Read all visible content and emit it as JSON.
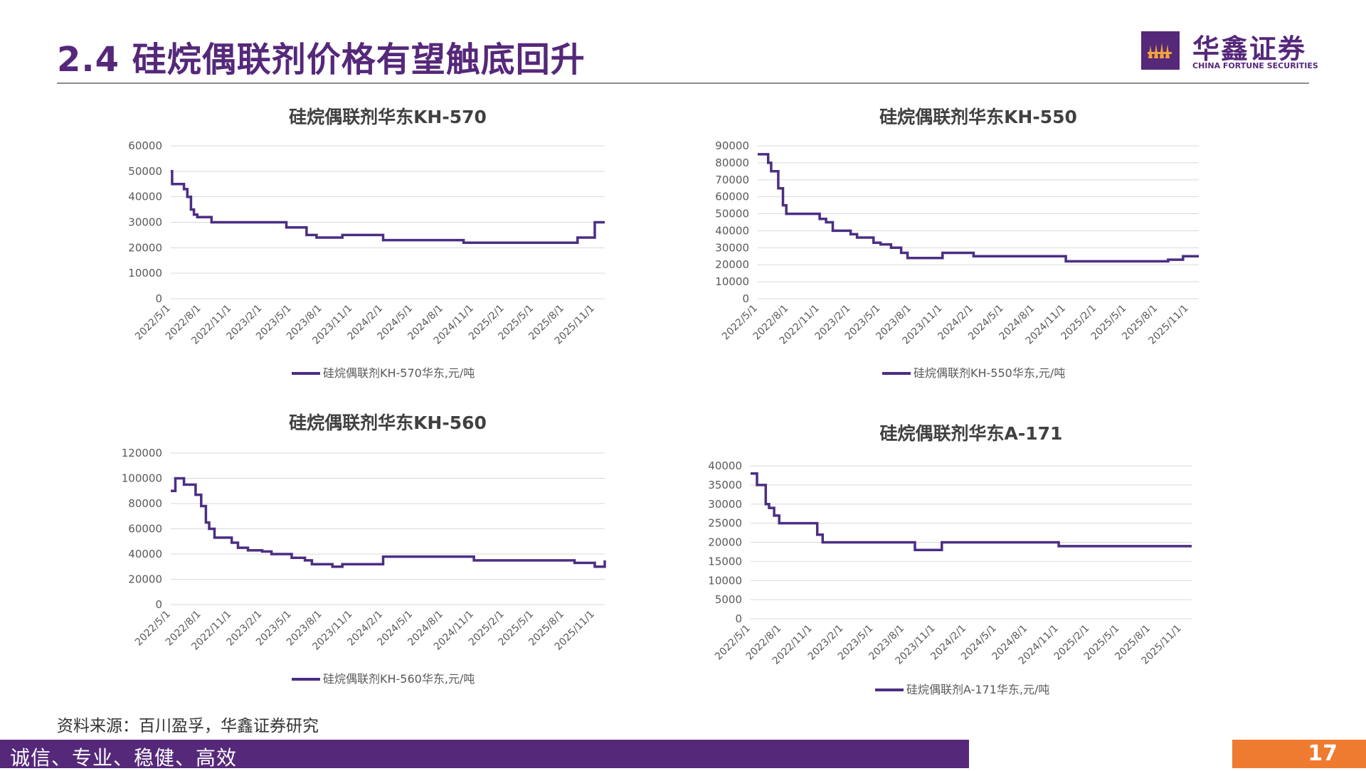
{
  "page": {
    "title": "2.4 硅烷偶联剂价格有望触底回升",
    "logo_cn": "华鑫证券",
    "logo_en": "CHINA FORTUNE SECURITIES",
    "source": "资料来源：百川盈孚，华鑫证券研究",
    "slogan": "诚信、专业、稳健、高效",
    "page_number": "17",
    "colors": {
      "brand": "#55287a",
      "line": "#4b2e83",
      "accent": "#ee7b30"
    }
  },
  "chart_data": [
    {
      "type": "line",
      "title": "硅烷偶联剂华东KH-570",
      "legend": "硅烷偶联剂KH-570华东,元/吨",
      "legend_position": "bottom",
      "grid": true,
      "ylim": [
        0,
        60000
      ],
      "yticks": [
        "0",
        "10000",
        "20000",
        "30000",
        "40000",
        "50000",
        "60000"
      ],
      "xlim": [
        "2022-05-01",
        "2025-12-01"
      ],
      "xticks": [
        "2022/5/1",
        "2022/8/1",
        "2022/11/1",
        "2023/2/1",
        "2023/5/1",
        "2023/8/1",
        "2023/11/1",
        "2024/2/1",
        "2024/5/1",
        "2024/8/1",
        "2024/11/1",
        "2025/2/1",
        "2025/5/1",
        "2025/8/1",
        "2025/11/1"
      ],
      "x": [
        "2022-05-01",
        "2022-05-05",
        "2022-06-10",
        "2022-06-20",
        "2022-07-01",
        "2022-07-10",
        "2022-07-20",
        "2022-08-20",
        "2022-09-01",
        "2022-10-10",
        "2023-01-01",
        "2023-04-15",
        "2023-06-15",
        "2023-07-15",
        "2023-10-01",
        "2024-02-01",
        "2024-10-01",
        "2025-08-01",
        "2025-09-10",
        "2025-09-20",
        "2025-11-01",
        "2025-12-01"
      ],
      "series": [
        {
          "values": [
            50000,
            45000,
            43000,
            40000,
            35000,
            33000,
            32000,
            32000,
            30000,
            30000,
            30000,
            28000,
            25000,
            24000,
            25000,
            23000,
            22000,
            22000,
            24000,
            24000,
            30000,
            30000
          ]
        }
      ]
    },
    {
      "type": "line",
      "title": "硅烷偶联剂华东KH-550",
      "legend": "硅烷偶联剂KH-550华东,元/吨",
      "legend_position": "bottom",
      "grid": true,
      "ylim": [
        0,
        90000
      ],
      "yticks": [
        "0",
        "10000",
        "20000",
        "30000",
        "40000",
        "50000",
        "60000",
        "70000",
        "80000",
        "90000"
      ],
      "xlim": [
        "2022-05-01",
        "2025-12-01"
      ],
      "xticks": [
        "2022/5/1",
        "2022/8/1",
        "2022/11/1",
        "2023/2/1",
        "2023/5/1",
        "2023/8/1",
        "2023/11/1",
        "2024/2/1",
        "2024/5/1",
        "2024/8/1",
        "2024/11/1",
        "2025/2/1",
        "2025/5/1",
        "2025/8/1",
        "2025/11/1"
      ],
      "x": [
        "2022-05-01",
        "2022-06-01",
        "2022-06-10",
        "2022-07-01",
        "2022-07-15",
        "2022-07-25",
        "2022-08-05",
        "2022-09-01",
        "2022-11-01",
        "2022-11-20",
        "2022-12-10",
        "2023-02-01",
        "2023-02-20",
        "2023-04-10",
        "2023-05-01",
        "2023-06-01",
        "2023-07-01",
        "2023-07-20",
        "2023-11-01",
        "2024-02-01",
        "2024-11-01",
        "2025-08-01",
        "2025-09-01",
        "2025-10-15",
        "2025-12-01"
      ],
      "series": [
        {
          "values": [
            85000,
            80000,
            75000,
            65000,
            55000,
            50000,
            50000,
            50000,
            47000,
            45000,
            40000,
            38000,
            36000,
            33000,
            32000,
            30000,
            27000,
            24000,
            27000,
            25000,
            22000,
            22000,
            23000,
            25000,
            25000
          ]
        }
      ]
    },
    {
      "type": "line",
      "title": "硅烷偶联剂华东KH-560",
      "legend": "硅烷偶联剂KH-560华东,元/吨",
      "legend_position": "bottom",
      "grid": true,
      "ylim": [
        0,
        120000
      ],
      "yticks": [
        "0",
        "20000",
        "40000",
        "60000",
        "80000",
        "100000",
        "120000"
      ],
      "xlim": [
        "2022-05-01",
        "2025-12-01"
      ],
      "xticks": [
        "2022/5/1",
        "2022/8/1",
        "2022/11/1",
        "2023/2/1",
        "2023/5/1",
        "2023/8/1",
        "2023/11/1",
        "2024/2/1",
        "2024/5/1",
        "2024/8/1",
        "2024/11/1",
        "2025/2/1",
        "2025/5/1",
        "2025/8/1",
        "2025/11/1"
      ],
      "x": [
        "2022-05-01",
        "2022-05-15",
        "2022-06-10",
        "2022-07-15",
        "2022-08-01",
        "2022-08-15",
        "2022-08-25",
        "2022-09-10",
        "2022-11-01",
        "2022-11-20",
        "2022-12-20",
        "2023-02-01",
        "2023-03-01",
        "2023-05-01",
        "2023-06-10",
        "2023-07-01",
        "2023-09-01",
        "2023-10-01",
        "2024-02-01",
        "2024-11-01",
        "2025-09-01",
        "2025-11-01",
        "2025-12-01"
      ],
      "series": [
        {
          "values": [
            90000,
            100000,
            95000,
            87000,
            78000,
            65000,
            60000,
            53000,
            49000,
            45000,
            43000,
            42000,
            40000,
            37000,
            35000,
            32000,
            30000,
            32000,
            38000,
            35000,
            33000,
            30000,
            35000
          ]
        }
      ]
    },
    {
      "type": "line",
      "title": "硅烷偶联剂华东A-171",
      "legend": "硅烷偶联剂A-171华东,元/吨",
      "legend_position": "bottom",
      "grid": true,
      "ylim": [
        0,
        40000
      ],
      "yticks": [
        "0",
        "5000",
        "10000",
        "15000",
        "20000",
        "25000",
        "30000",
        "35000",
        "40000"
      ],
      "xlim": [
        "2022-05-01",
        "2025-12-01"
      ],
      "xticks": [
        "2022/5/1",
        "2022/8/1",
        "2022/11/1",
        "2023/2/1",
        "2023/5/1",
        "2023/8/1",
        "2023/11/1",
        "2024/2/1",
        "2024/5/1",
        "2024/8/1",
        "2024/11/1",
        "2025/2/1",
        "2025/5/1",
        "2025/8/1",
        "2025/11/1"
      ],
      "x": [
        "2022-05-01",
        "2022-05-20",
        "2022-06-15",
        "2022-06-25",
        "2022-07-10",
        "2022-07-25",
        "2022-10-15",
        "2022-11-15",
        "2022-12-01",
        "2023-09-01",
        "2023-11-20",
        "2024-11-01",
        "2025-12-01"
      ],
      "series": [
        {
          "values": [
            38000,
            35000,
            30000,
            29000,
            27000,
            25000,
            25000,
            22000,
            20000,
            18000,
            20000,
            19000,
            19000
          ]
        }
      ]
    }
  ]
}
